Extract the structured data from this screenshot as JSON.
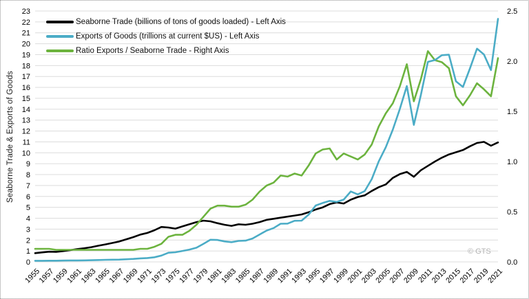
{
  "chart_data": {
    "type": "line",
    "title": "",
    "y_left_label": "Seaborne Trade & Exports of Goods",
    "watermark": "© GTS",
    "grid": "horizontal",
    "grid_color": "#dcdcdc",
    "legend_position": "top-left",
    "left_axis": {
      "min": 0,
      "max": 23,
      "step": 1
    },
    "right_axis": {
      "min": 0,
      "max": 2.5,
      "step": 0.5,
      "decimals": 1
    },
    "x_tick_labels": [
      "1955",
      "1957",
      "1959",
      "1961",
      "1963",
      "1965",
      "1967",
      "1969",
      "1971",
      "1973",
      "1975",
      "1977",
      "1979",
      "1981",
      "1983",
      "1985",
      "1987",
      "1989",
      "1991",
      "1993",
      "1995",
      "1997",
      "1999",
      "2001",
      "2003",
      "2005",
      "2007",
      "2009",
      "2011",
      "2013",
      "2015",
      "2017",
      "2019",
      "2021"
    ],
    "years": [
      1955,
      1956,
      1957,
      1958,
      1959,
      1960,
      1961,
      1962,
      1963,
      1964,
      1965,
      1966,
      1967,
      1968,
      1969,
      1970,
      1971,
      1972,
      1973,
      1974,
      1975,
      1976,
      1977,
      1978,
      1979,
      1980,
      1981,
      1982,
      1983,
      1984,
      1985,
      1986,
      1987,
      1988,
      1989,
      1990,
      1991,
      1992,
      1993,
      1994,
      1995,
      1996,
      1997,
      1998,
      1999,
      2000,
      2001,
      2002,
      2003,
      2004,
      2005,
      2006,
      2007,
      2008,
      2009,
      2010,
      2011,
      2012,
      2013,
      2014,
      2015,
      2016,
      2017,
      2018,
      2019,
      2020,
      2021
    ],
    "series": [
      {
        "id": "seaborne-trade",
        "name": "Seaborne Trade (billions of tons of goods loaded) - Left Axis",
        "axis": "left",
        "color": "#000000",
        "values": [
          0.8,
          0.87,
          0.93,
          0.92,
          0.99,
          1.08,
          1.17,
          1.25,
          1.35,
          1.48,
          1.6,
          1.73,
          1.87,
          2.07,
          2.27,
          2.5,
          2.65,
          2.9,
          3.2,
          3.15,
          3.05,
          3.25,
          3.45,
          3.65,
          3.78,
          3.72,
          3.55,
          3.4,
          3.3,
          3.45,
          3.4,
          3.5,
          3.65,
          3.85,
          3.95,
          4.05,
          4.15,
          4.25,
          4.35,
          4.55,
          4.8,
          5.0,
          5.3,
          5.45,
          5.35,
          5.7,
          5.95,
          6.1,
          6.5,
          6.85,
          7.1,
          7.7,
          8.05,
          8.25,
          7.8,
          8.4,
          8.8,
          9.2,
          9.55,
          9.85,
          10.05,
          10.25,
          10.6,
          10.9,
          11.0,
          10.65,
          10.95
        ]
      },
      {
        "id": "exports-of-goods",
        "name": "Exports of Goods (trillions at current $US) - Left Axis",
        "axis": "left",
        "color": "#4bacc6",
        "values": [
          0.1,
          0.1,
          0.11,
          0.11,
          0.12,
          0.13,
          0.13,
          0.14,
          0.15,
          0.17,
          0.19,
          0.2,
          0.21,
          0.24,
          0.27,
          0.32,
          0.35,
          0.42,
          0.58,
          0.84,
          0.88,
          1.0,
          1.13,
          1.3,
          1.66,
          2.03,
          2.01,
          1.88,
          1.81,
          1.92,
          1.95,
          2.14,
          2.51,
          2.87,
          3.1,
          3.5,
          3.51,
          3.77,
          3.78,
          4.33,
          5.17,
          5.4,
          5.59,
          5.5,
          5.71,
          6.45,
          6.19,
          6.49,
          7.59,
          9.22,
          10.51,
          12.13,
          14.02,
          16.12,
          12.56,
          15.3,
          18.34,
          18.5,
          18.95,
          18.99,
          16.56,
          16.04,
          17.74,
          19.55,
          19.01,
          17.58,
          22.28
        ]
      },
      {
        "id": "ratio-exports-seaborne",
        "name": "Ratio Exports / Seaborne Trade - Right Axis",
        "axis": "right",
        "color": "#6cb33e",
        "values": [
          0.13,
          0.13,
          0.13,
          0.12,
          0.12,
          0.12,
          0.12,
          0.12,
          0.12,
          0.12,
          0.12,
          0.12,
          0.12,
          0.12,
          0.12,
          0.13,
          0.13,
          0.15,
          0.18,
          0.25,
          0.27,
          0.27,
          0.31,
          0.37,
          0.45,
          0.53,
          0.56,
          0.56,
          0.55,
          0.55,
          0.57,
          0.62,
          0.7,
          0.76,
          0.79,
          0.86,
          0.85,
          0.88,
          0.86,
          0.96,
          1.08,
          1.12,
          1.13,
          1.02,
          1.08,
          1.05,
          1.02,
          1.07,
          1.17,
          1.35,
          1.48,
          1.58,
          1.75,
          1.97,
          1.6,
          1.82,
          2.1,
          2.01,
          1.99,
          1.93,
          1.65,
          1.56,
          1.66,
          1.78,
          1.72,
          1.65,
          2.03
        ]
      }
    ]
  }
}
